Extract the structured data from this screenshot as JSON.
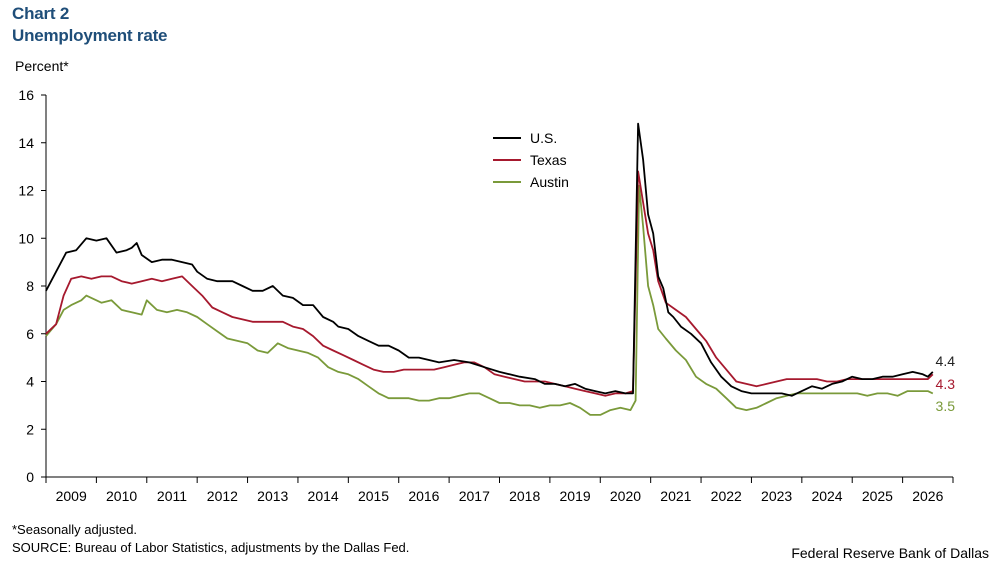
{
  "header": {
    "chart_number": "Chart 2",
    "title": "Unemployment rate"
  },
  "footer": {
    "footnote": "*Seasonally adjusted.",
    "source": "SOURCE: Bureau of Labor Statistics, adjustments by the Dallas Fed.",
    "credit": "Federal Reserve Bank of Dallas"
  },
  "chart_data": {
    "type": "line",
    "title": "Unemployment rate",
    "ylabel": "Percent*",
    "xlabel": "",
    "ylim": [
      0,
      16
    ],
    "yticks": [
      0,
      2,
      4,
      6,
      8,
      10,
      12,
      14,
      16
    ],
    "xlim": [
      2008.5,
      2026.5
    ],
    "xtick_labels": [
      "2009",
      "2010",
      "2011",
      "2012",
      "2013",
      "2014",
      "2015",
      "2016",
      "2017",
      "2018",
      "2019",
      "2020",
      "2021",
      "2022",
      "2023",
      "2024",
      "2025",
      "2026"
    ],
    "grid": false,
    "legend": "top-center",
    "end_labels": [
      {
        "series": "U.S.",
        "text": "4.4"
      },
      {
        "series": "Texas",
        "text": "4.3"
      },
      {
        "series": "Austin",
        "text": "3.5"
      }
    ],
    "series": [
      {
        "name": "U.S.",
        "color": "#000000",
        "points": [
          [
            2008.5,
            7.8
          ],
          [
            2008.7,
            8.6
          ],
          [
            2008.9,
            9.4
          ],
          [
            2009.1,
            9.5
          ],
          [
            2009.3,
            10.0
          ],
          [
            2009.5,
            9.9
          ],
          [
            2009.7,
            10.0
          ],
          [
            2009.9,
            9.4
          ],
          [
            2010.1,
            9.5
          ],
          [
            2010.2,
            9.6
          ],
          [
            2010.3,
            9.8
          ],
          [
            2010.4,
            9.3
          ],
          [
            2010.6,
            9.0
          ],
          [
            2010.8,
            9.1
          ],
          [
            2011.0,
            9.1
          ],
          [
            2011.2,
            9.0
          ],
          [
            2011.4,
            8.9
          ],
          [
            2011.5,
            8.6
          ],
          [
            2011.7,
            8.3
          ],
          [
            2011.9,
            8.2
          ],
          [
            2012.2,
            8.2
          ],
          [
            2012.4,
            8.0
          ],
          [
            2012.6,
            7.8
          ],
          [
            2012.8,
            7.8
          ],
          [
            2013.0,
            8.0
          ],
          [
            2013.2,
            7.6
          ],
          [
            2013.4,
            7.5
          ],
          [
            2013.6,
            7.2
          ],
          [
            2013.8,
            7.2
          ],
          [
            2014.0,
            6.7
          ],
          [
            2014.2,
            6.5
          ],
          [
            2014.3,
            6.3
          ],
          [
            2014.5,
            6.2
          ],
          [
            2014.7,
            5.9
          ],
          [
            2014.9,
            5.7
          ],
          [
            2015.1,
            5.5
          ],
          [
            2015.3,
            5.5
          ],
          [
            2015.5,
            5.3
          ],
          [
            2015.7,
            5.0
          ],
          [
            2015.9,
            5.0
          ],
          [
            2016.1,
            4.9
          ],
          [
            2016.3,
            4.8
          ],
          [
            2016.6,
            4.9
          ],
          [
            2016.9,
            4.8
          ],
          [
            2017.2,
            4.6
          ],
          [
            2017.5,
            4.4
          ],
          [
            2017.7,
            4.3
          ],
          [
            2017.9,
            4.2
          ],
          [
            2018.2,
            4.1
          ],
          [
            2018.4,
            3.9
          ],
          [
            2018.6,
            3.9
          ],
          [
            2018.8,
            3.8
          ],
          [
            2019.0,
            3.9
          ],
          [
            2019.2,
            3.7
          ],
          [
            2019.4,
            3.6
          ],
          [
            2019.6,
            3.5
          ],
          [
            2019.8,
            3.6
          ],
          [
            2020.0,
            3.5
          ],
          [
            2020.15,
            3.5
          ],
          [
            2020.25,
            14.8
          ],
          [
            2020.35,
            13.3
          ],
          [
            2020.45,
            11.0
          ],
          [
            2020.55,
            10.2
          ],
          [
            2020.65,
            8.4
          ],
          [
            2020.75,
            7.9
          ],
          [
            2020.85,
            6.9
          ],
          [
            2020.95,
            6.7
          ],
          [
            2021.1,
            6.3
          ],
          [
            2021.3,
            6.0
          ],
          [
            2021.5,
            5.6
          ],
          [
            2021.7,
            4.8
          ],
          [
            2021.9,
            4.2
          ],
          [
            2022.1,
            3.8
          ],
          [
            2022.3,
            3.6
          ],
          [
            2022.5,
            3.5
          ],
          [
            2022.7,
            3.5
          ],
          [
            2022.9,
            3.5
          ],
          [
            2023.1,
            3.5
          ],
          [
            2023.3,
            3.4
          ],
          [
            2023.5,
            3.6
          ],
          [
            2023.7,
            3.8
          ],
          [
            2023.9,
            3.7
          ],
          [
            2024.1,
            3.9
          ],
          [
            2024.3,
            4.0
          ],
          [
            2024.5,
            4.2
          ],
          [
            2024.7,
            4.1
          ],
          [
            2024.9,
            4.1
          ],
          [
            2025.1,
            4.2
          ],
          [
            2025.3,
            4.2
          ],
          [
            2025.5,
            4.3
          ],
          [
            2025.7,
            4.4
          ],
          [
            2025.9,
            4.3
          ],
          [
            2026.0,
            4.2
          ],
          [
            2026.1,
            4.4
          ]
        ]
      },
      {
        "name": "Texas",
        "color": "#a6192e",
        "points": [
          [
            2008.5,
            6.0
          ],
          [
            2008.7,
            6.4
          ],
          [
            2008.85,
            7.6
          ],
          [
            2009.0,
            8.3
          ],
          [
            2009.2,
            8.4
          ],
          [
            2009.4,
            8.3
          ],
          [
            2009.6,
            8.4
          ],
          [
            2009.8,
            8.4
          ],
          [
            2010.0,
            8.2
          ],
          [
            2010.2,
            8.1
          ],
          [
            2010.4,
            8.2
          ],
          [
            2010.6,
            8.3
          ],
          [
            2010.8,
            8.2
          ],
          [
            2011.0,
            8.3
          ],
          [
            2011.2,
            8.4
          ],
          [
            2011.4,
            8.0
          ],
          [
            2011.6,
            7.6
          ],
          [
            2011.8,
            7.1
          ],
          [
            2012.0,
            6.9
          ],
          [
            2012.2,
            6.7
          ],
          [
            2012.4,
            6.6
          ],
          [
            2012.6,
            6.5
          ],
          [
            2012.8,
            6.5
          ],
          [
            2013.0,
            6.5
          ],
          [
            2013.2,
            6.5
          ],
          [
            2013.4,
            6.3
          ],
          [
            2013.6,
            6.2
          ],
          [
            2013.8,
            5.9
          ],
          [
            2014.0,
            5.5
          ],
          [
            2014.2,
            5.3
          ],
          [
            2014.4,
            5.1
          ],
          [
            2014.6,
            4.9
          ],
          [
            2014.8,
            4.7
          ],
          [
            2015.0,
            4.5
          ],
          [
            2015.2,
            4.4
          ],
          [
            2015.4,
            4.4
          ],
          [
            2015.6,
            4.5
          ],
          [
            2015.8,
            4.5
          ],
          [
            2016.0,
            4.5
          ],
          [
            2016.2,
            4.5
          ],
          [
            2016.4,
            4.6
          ],
          [
            2016.6,
            4.7
          ],
          [
            2016.8,
            4.8
          ],
          [
            2017.0,
            4.8
          ],
          [
            2017.2,
            4.6
          ],
          [
            2017.4,
            4.3
          ],
          [
            2017.6,
            4.2
          ],
          [
            2017.8,
            4.1
          ],
          [
            2018.0,
            4.0
          ],
          [
            2018.2,
            4.0
          ],
          [
            2018.4,
            4.0
          ],
          [
            2018.6,
            3.9
          ],
          [
            2018.8,
            3.8
          ],
          [
            2019.0,
            3.7
          ],
          [
            2019.2,
            3.6
          ],
          [
            2019.4,
            3.5
          ],
          [
            2019.6,
            3.4
          ],
          [
            2019.8,
            3.5
          ],
          [
            2020.0,
            3.5
          ],
          [
            2020.15,
            3.6
          ],
          [
            2020.25,
            12.8
          ],
          [
            2020.35,
            11.5
          ],
          [
            2020.45,
            10.2
          ],
          [
            2020.55,
            9.5
          ],
          [
            2020.65,
            8.2
          ],
          [
            2020.8,
            7.3
          ],
          [
            2021.0,
            7.0
          ],
          [
            2021.2,
            6.7
          ],
          [
            2021.4,
            6.2
          ],
          [
            2021.6,
            5.7
          ],
          [
            2021.8,
            5.0
          ],
          [
            2022.0,
            4.5
          ],
          [
            2022.2,
            4.0
          ],
          [
            2022.4,
            3.9
          ],
          [
            2022.6,
            3.8
          ],
          [
            2022.8,
            3.9
          ],
          [
            2023.0,
            4.0
          ],
          [
            2023.2,
            4.1
          ],
          [
            2023.4,
            4.1
          ],
          [
            2023.6,
            4.1
          ],
          [
            2023.8,
            4.1
          ],
          [
            2024.0,
            4.0
          ],
          [
            2024.2,
            4.0
          ],
          [
            2024.4,
            4.1
          ],
          [
            2024.6,
            4.1
          ],
          [
            2024.8,
            4.1
          ],
          [
            2025.0,
            4.1
          ],
          [
            2025.2,
            4.1
          ],
          [
            2025.4,
            4.1
          ],
          [
            2025.6,
            4.1
          ],
          [
            2025.8,
            4.1
          ],
          [
            2026.0,
            4.1
          ],
          [
            2026.1,
            4.3
          ]
        ]
      },
      {
        "name": "Austin",
        "color": "#7a9a3a",
        "points": [
          [
            2008.5,
            5.9
          ],
          [
            2008.7,
            6.4
          ],
          [
            2008.85,
            7.0
          ],
          [
            2009.0,
            7.2
          ],
          [
            2009.2,
            7.4
          ],
          [
            2009.3,
            7.6
          ],
          [
            2009.5,
            7.4
          ],
          [
            2009.6,
            7.3
          ],
          [
            2009.8,
            7.4
          ],
          [
            2010.0,
            7.0
          ],
          [
            2010.2,
            6.9
          ],
          [
            2010.4,
            6.8
          ],
          [
            2010.5,
            7.4
          ],
          [
            2010.7,
            7.0
          ],
          [
            2010.9,
            6.9
          ],
          [
            2011.1,
            7.0
          ],
          [
            2011.3,
            6.9
          ],
          [
            2011.5,
            6.7
          ],
          [
            2011.7,
            6.4
          ],
          [
            2011.9,
            6.1
          ],
          [
            2012.1,
            5.8
          ],
          [
            2012.3,
            5.7
          ],
          [
            2012.5,
            5.6
          ],
          [
            2012.7,
            5.3
          ],
          [
            2012.9,
            5.2
          ],
          [
            2013.1,
            5.6
          ],
          [
            2013.3,
            5.4
          ],
          [
            2013.5,
            5.3
          ],
          [
            2013.7,
            5.2
          ],
          [
            2013.9,
            5.0
          ],
          [
            2014.1,
            4.6
          ],
          [
            2014.3,
            4.4
          ],
          [
            2014.5,
            4.3
          ],
          [
            2014.7,
            4.1
          ],
          [
            2014.9,
            3.8
          ],
          [
            2015.1,
            3.5
          ],
          [
            2015.3,
            3.3
          ],
          [
            2015.5,
            3.3
          ],
          [
            2015.7,
            3.3
          ],
          [
            2015.9,
            3.2
          ],
          [
            2016.1,
            3.2
          ],
          [
            2016.3,
            3.3
          ],
          [
            2016.5,
            3.3
          ],
          [
            2016.7,
            3.4
          ],
          [
            2016.9,
            3.5
          ],
          [
            2017.1,
            3.5
          ],
          [
            2017.3,
            3.3
          ],
          [
            2017.5,
            3.1
          ],
          [
            2017.7,
            3.1
          ],
          [
            2017.9,
            3.0
          ],
          [
            2018.1,
            3.0
          ],
          [
            2018.3,
            2.9
          ],
          [
            2018.5,
            3.0
          ],
          [
            2018.7,
            3.0
          ],
          [
            2018.9,
            3.1
          ],
          [
            2019.1,
            2.9
          ],
          [
            2019.3,
            2.6
          ],
          [
            2019.5,
            2.6
          ],
          [
            2019.7,
            2.8
          ],
          [
            2019.9,
            2.9
          ],
          [
            2020.1,
            2.8
          ],
          [
            2020.2,
            3.2
          ],
          [
            2020.27,
            12.2
          ],
          [
            2020.35,
            10.5
          ],
          [
            2020.45,
            8.0
          ],
          [
            2020.55,
            7.2
          ],
          [
            2020.65,
            6.2
          ],
          [
            2020.8,
            5.8
          ],
          [
            2021.0,
            5.3
          ],
          [
            2021.2,
            4.9
          ],
          [
            2021.4,
            4.2
          ],
          [
            2021.6,
            3.9
          ],
          [
            2021.8,
            3.7
          ],
          [
            2022.0,
            3.3
          ],
          [
            2022.2,
            2.9
          ],
          [
            2022.4,
            2.8
          ],
          [
            2022.6,
            2.9
          ],
          [
            2022.8,
            3.1
          ],
          [
            2023.0,
            3.3
          ],
          [
            2023.2,
            3.4
          ],
          [
            2023.4,
            3.5
          ],
          [
            2023.6,
            3.5
          ],
          [
            2023.8,
            3.5
          ],
          [
            2024.0,
            3.5
          ],
          [
            2024.2,
            3.5
          ],
          [
            2024.4,
            3.5
          ],
          [
            2024.6,
            3.5
          ],
          [
            2024.8,
            3.4
          ],
          [
            2025.0,
            3.5
          ],
          [
            2025.2,
            3.5
          ],
          [
            2025.4,
            3.4
          ],
          [
            2025.6,
            3.6
          ],
          [
            2025.8,
            3.6
          ],
          [
            2026.0,
            3.6
          ],
          [
            2026.1,
            3.5
          ]
        ]
      }
    ]
  }
}
